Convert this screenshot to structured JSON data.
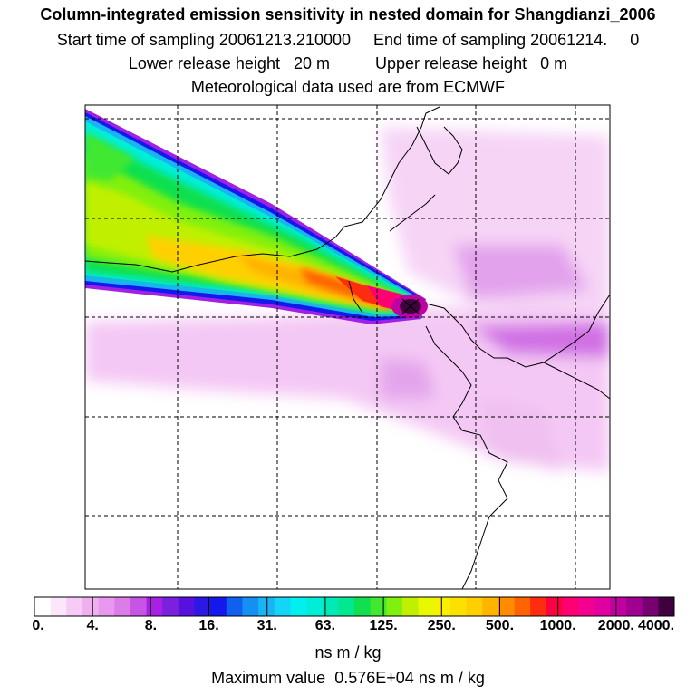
{
  "chart_data": {
    "type": "heatmap",
    "title": "Column-integrated emission sensitivity in nested domain for Shangdianzi_2006",
    "subtitle_start_label": "Start time of sampling",
    "start_time": "20061213.210000",
    "subtitle_end_label": "End time of sampling",
    "end_time": "20061214.     0",
    "lower_release_label": "Lower release height",
    "lower_release_value": "20 m",
    "upper_release_label": "Upper release height",
    "upper_release_value": "0 m",
    "meteo_text": "Meteorological data used are from ECMWF",
    "colorbar": {
      "levels": [
        0,
        4,
        8,
        16,
        31,
        63,
        125,
        250,
        500,
        1000,
        2000,
        4000
      ],
      "tick_labels": [
        "0.",
        "4.",
        "8.",
        "16.",
        "31.",
        "63.",
        "125.",
        "250.",
        "500.",
        "1000.",
        "2000.",
        "4000."
      ],
      "colors": [
        "#ffffff",
        "#fbe6fb",
        "#f6ccf6",
        "#f0b0f0",
        "#e898ee",
        "#dc7ce8",
        "#c854e6",
        "#a820e4",
        "#7c20e0",
        "#5810de",
        "#2a18e4",
        "#1418ec",
        "#1060f0",
        "#1490f2",
        "#18b4f4",
        "#14d4f8",
        "#00f0f0",
        "#00eed8",
        "#00eab8",
        "#00e890",
        "#10e050",
        "#40e830",
        "#80f010",
        "#c0f000",
        "#e8f800",
        "#f8f000",
        "#fce000",
        "#ffd000",
        "#ffb400",
        "#ff8c00",
        "#ff6400",
        "#ff2c10",
        "#ff0040",
        "#ff0074",
        "#f40090",
        "#e000a0",
        "#c000a0",
        "#a00090",
        "#780070",
        "#400040"
      ],
      "units": "ns m / kg"
    },
    "max_value_label": "Maximum value",
    "max_value": "0.576E+04",
    "max_value_units": "ns m / kg",
    "grid": true,
    "plume": {
      "description": "high sensitivity plume extending from receptor toward upper-left",
      "peak_value": 5760
    }
  }
}
